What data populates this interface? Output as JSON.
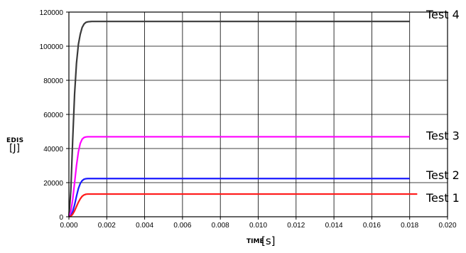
{
  "chart_data": {
    "type": "line",
    "xlabel": "TIME",
    "xunit": "[s]",
    "ylabel": "EDIS",
    "yunit": "[J]",
    "xlim": [
      0.0,
      0.02
    ],
    "ylim": [
      0,
      120000
    ],
    "x_ticks": [
      "0.000",
      "0.002",
      "0.004",
      "0.006",
      "0.008",
      "0.010",
      "0.012",
      "0.014",
      "0.016",
      "0.018",
      "0.020"
    ],
    "y_ticks": [
      "0",
      "20000",
      "40000",
      "60000",
      "80000",
      "100000",
      "120000"
    ],
    "grid": true,
    "series": [
      {
        "name": "Test 4",
        "color": "#3a3a3a",
        "x": [
          0.0,
          0.0001,
          0.0002,
          0.0003,
          0.0004,
          0.0005,
          0.0006,
          0.0007,
          0.0008,
          0.0009,
          0.001,
          0.0011,
          0.0012,
          0.0015,
          0.002,
          0.004,
          0.006,
          0.008,
          0.01,
          0.012,
          0.014,
          0.016,
          0.018
        ],
        "y": [
          0,
          15000,
          45000,
          72000,
          90000,
          101000,
          107000,
          111000,
          113000,
          114000,
          114300,
          114400,
          114500,
          114500,
          114500,
          114500,
          114500,
          114500,
          114500,
          114500,
          114500,
          114500,
          114500
        ]
      },
      {
        "name": "Test 3",
        "color": "#ff00ff",
        "x": [
          0.0,
          0.0001,
          0.0002,
          0.0003,
          0.0004,
          0.0005,
          0.0006,
          0.0007,
          0.0008,
          0.0009,
          0.001,
          0.0012,
          0.0015,
          0.002,
          0.004,
          0.006,
          0.008,
          0.01,
          0.012,
          0.014,
          0.016,
          0.018
        ],
        "y": [
          0,
          3000,
          10000,
          20000,
          30000,
          38000,
          43000,
          45500,
          46500,
          46800,
          46900,
          46900,
          46900,
          46900,
          46900,
          46900,
          46900,
          46900,
          46900,
          46900,
          46900,
          46900
        ]
      },
      {
        "name": "Test 2",
        "color": "#1a1aff",
        "x": [
          0.0,
          0.0001,
          0.0002,
          0.0003,
          0.0004,
          0.0005,
          0.0006,
          0.0007,
          0.0008,
          0.0009,
          0.001,
          0.0012,
          0.0015,
          0.002,
          0.004,
          0.006,
          0.008,
          0.01,
          0.012,
          0.014,
          0.016,
          0.018
        ],
        "y": [
          0,
          500,
          3000,
          7000,
          12000,
          16500,
          19500,
          21200,
          22000,
          22300,
          22400,
          22400,
          22400,
          22400,
          22400,
          22400,
          22400,
          22400,
          22400,
          22400,
          22400,
          22400
        ]
      },
      {
        "name": "Test 1",
        "color": "#ff1a1a",
        "x": [
          0.0,
          0.0001,
          0.0002,
          0.0003,
          0.0004,
          0.0005,
          0.0006,
          0.0007,
          0.0008,
          0.0009,
          0.001,
          0.0012,
          0.0015,
          0.002,
          0.004,
          0.006,
          0.008,
          0.01,
          0.012,
          0.014,
          0.016,
          0.0184
        ],
        "y": [
          0,
          300,
          1500,
          3500,
          6000,
          8500,
          10500,
          12000,
          12800,
          13200,
          13300,
          13300,
          13300,
          13300,
          13300,
          13300,
          13300,
          13300,
          13300,
          13300,
          13300,
          13300
        ]
      }
    ]
  }
}
